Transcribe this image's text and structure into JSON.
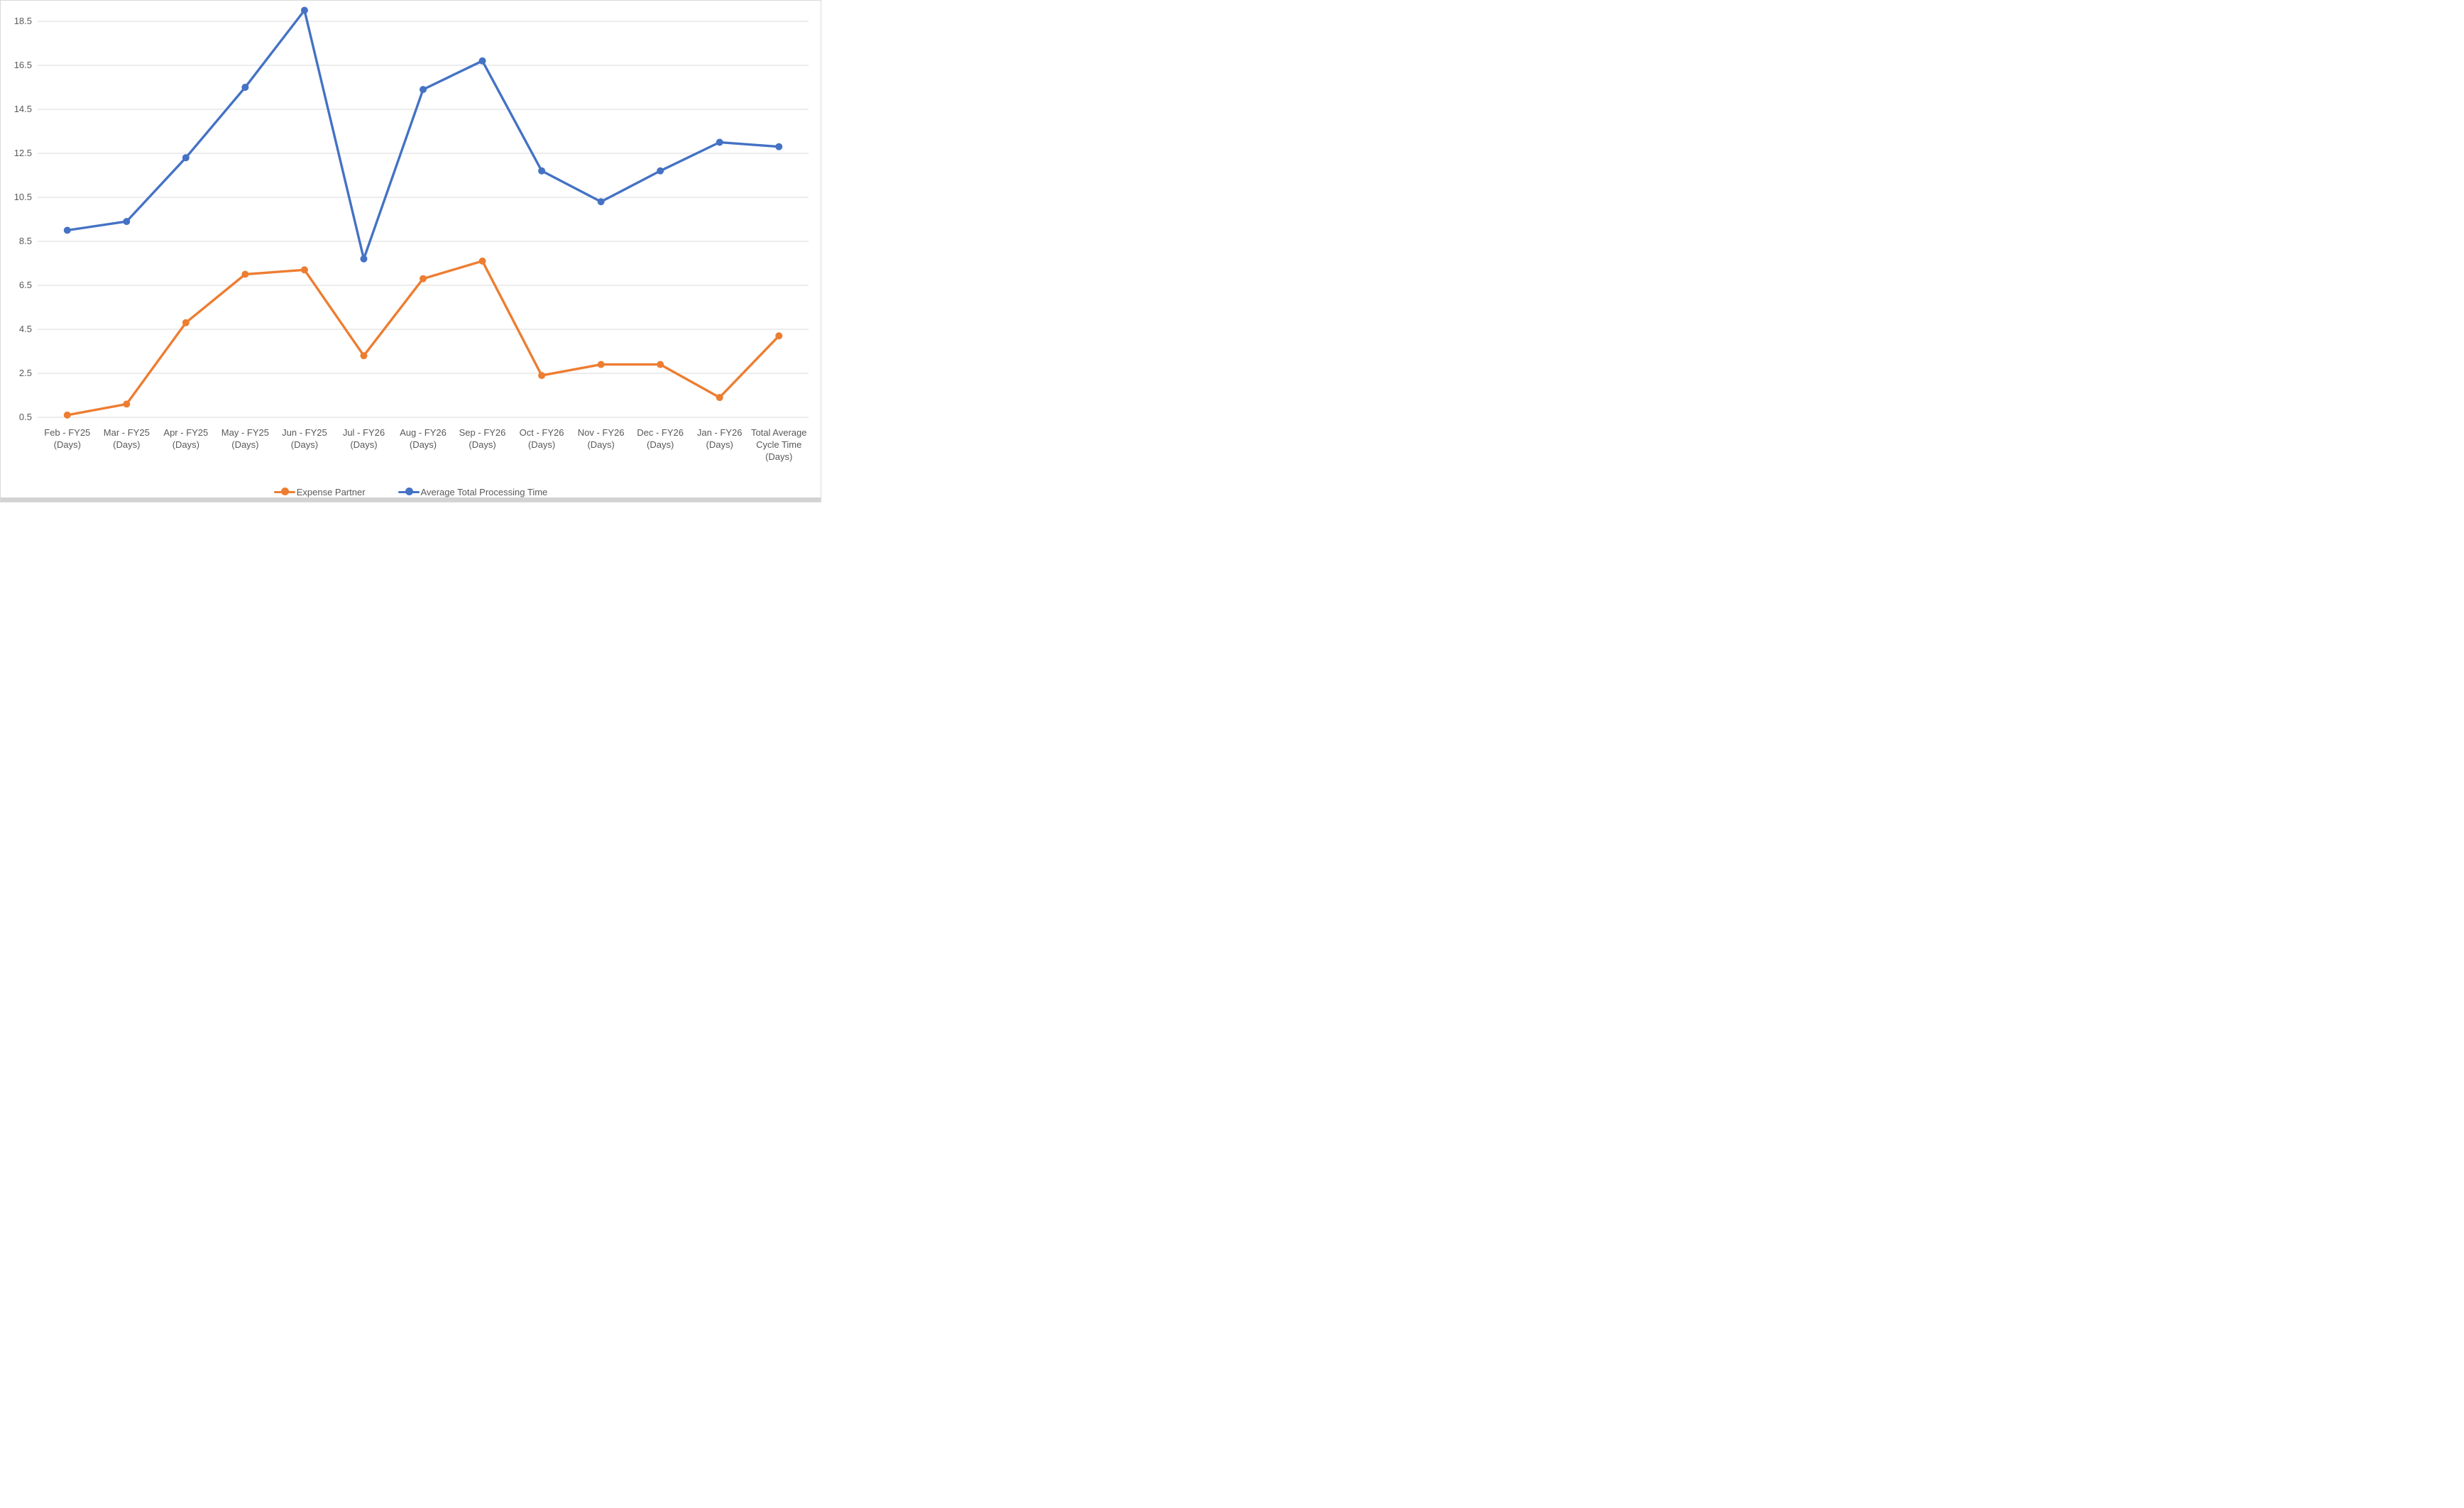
{
  "chart_data": {
    "type": "line",
    "title": "",
    "categories": [
      [
        "Feb - FY25",
        "(Days)"
      ],
      [
        "Mar - FY25",
        "(Days)"
      ],
      [
        "Apr - FY25",
        "(Days)"
      ],
      [
        "May - FY25",
        "(Days)"
      ],
      [
        "Jun - FY25",
        "(Days)"
      ],
      [
        "Jul - FY26",
        "(Days)"
      ],
      [
        "Aug - FY26",
        "(Days)"
      ],
      [
        "Sep - FY26",
        "(Days)"
      ],
      [
        "Oct - FY26",
        "(Days)"
      ],
      [
        "Nov - FY26",
        "(Days)"
      ],
      [
        "Dec - FY26",
        "(Days)"
      ],
      [
        "Jan - FY26",
        "(Days)"
      ],
      [
        "Total Average",
        "Cycle Time",
        "(Days)"
      ]
    ],
    "series": [
      {
        "name": "Expense Partner",
        "color": "#ED7D31",
        "values": [
          0.6,
          1.1,
          4.8,
          7.0,
          7.2,
          3.3,
          6.8,
          7.6,
          2.4,
          2.9,
          2.9,
          1.4,
          4.2
        ]
      },
      {
        "name": "Average Total Processing Time",
        "color": "#4472C4",
        "values": [
          9.0,
          9.4,
          12.3,
          15.5,
          19.0,
          7.7,
          15.4,
          16.7,
          11.7,
          10.3,
          11.7,
          13.0,
          12.8
        ]
      }
    ],
    "y_ticks": [
      18.5,
      16.5,
      14.5,
      12.5,
      10.5,
      8.5,
      6.5,
      4.5,
      2.5,
      0.5
    ],
    "ylim": [
      0.5,
      19.5
    ],
    "xlabel": "",
    "ylabel": "",
    "grid": "horizontal",
    "gridline_color": "#D9D9D9",
    "axis_text_color": "#595959",
    "background_color": "#FFFFFF",
    "frame_color": "#D9D9D9",
    "legend_position": "bottom"
  }
}
